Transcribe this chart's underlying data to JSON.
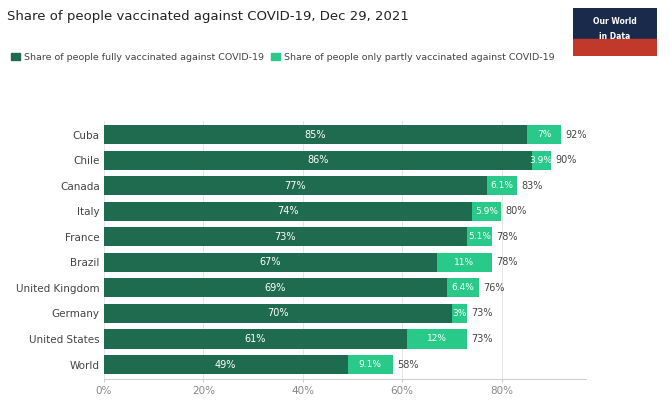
{
  "title": "Share of people vaccinated against COVID-19, Dec 29, 2021",
  "countries": [
    "Cuba",
    "Chile",
    "Canada",
    "Italy",
    "France",
    "Brazil",
    "United Kingdom",
    "Germany",
    "United States",
    "World"
  ],
  "fully_vaccinated": [
    85,
    86,
    77,
    74,
    73,
    67,
    69,
    70,
    61,
    49
  ],
  "partly_vaccinated": [
    7,
    3.9,
    6.1,
    5.9,
    5.1,
    11,
    6.4,
    3,
    12,
    9.1
  ],
  "total_labels": [
    "92%",
    "90%",
    "83%",
    "80%",
    "78%",
    "78%",
    "76%",
    "73%",
    "73%",
    "58%"
  ],
  "fully_labels": [
    "85%",
    "86%",
    "77%",
    "74%",
    "73%",
    "67%",
    "69%",
    "70%",
    "61%",
    "49%"
  ],
  "partly_labels": [
    "7%",
    "3.9%",
    "6.1%",
    "5.9%",
    "5.1%",
    "11%",
    "6.4%",
    "3%",
    "12%",
    "9.1%"
  ],
  "color_fully": "#1e6b4f",
  "color_partly": "#29c98a",
  "legend_fully": "Share of people fully vaccinated against COVID-19",
  "legend_partly": "Share of people only partly vaccinated against COVID-19",
  "background_color": "#ffffff",
  "xticks": [
    0,
    20,
    40,
    60,
    80
  ],
  "xtick_labels": [
    "0%",
    "20%",
    "40%",
    "60%",
    "80%"
  ],
  "logo_text1": "Our World",
  "logo_text2": "in Data",
  "logo_bg": "#c0392b",
  "logo_top_bg": "#1a2a4a"
}
